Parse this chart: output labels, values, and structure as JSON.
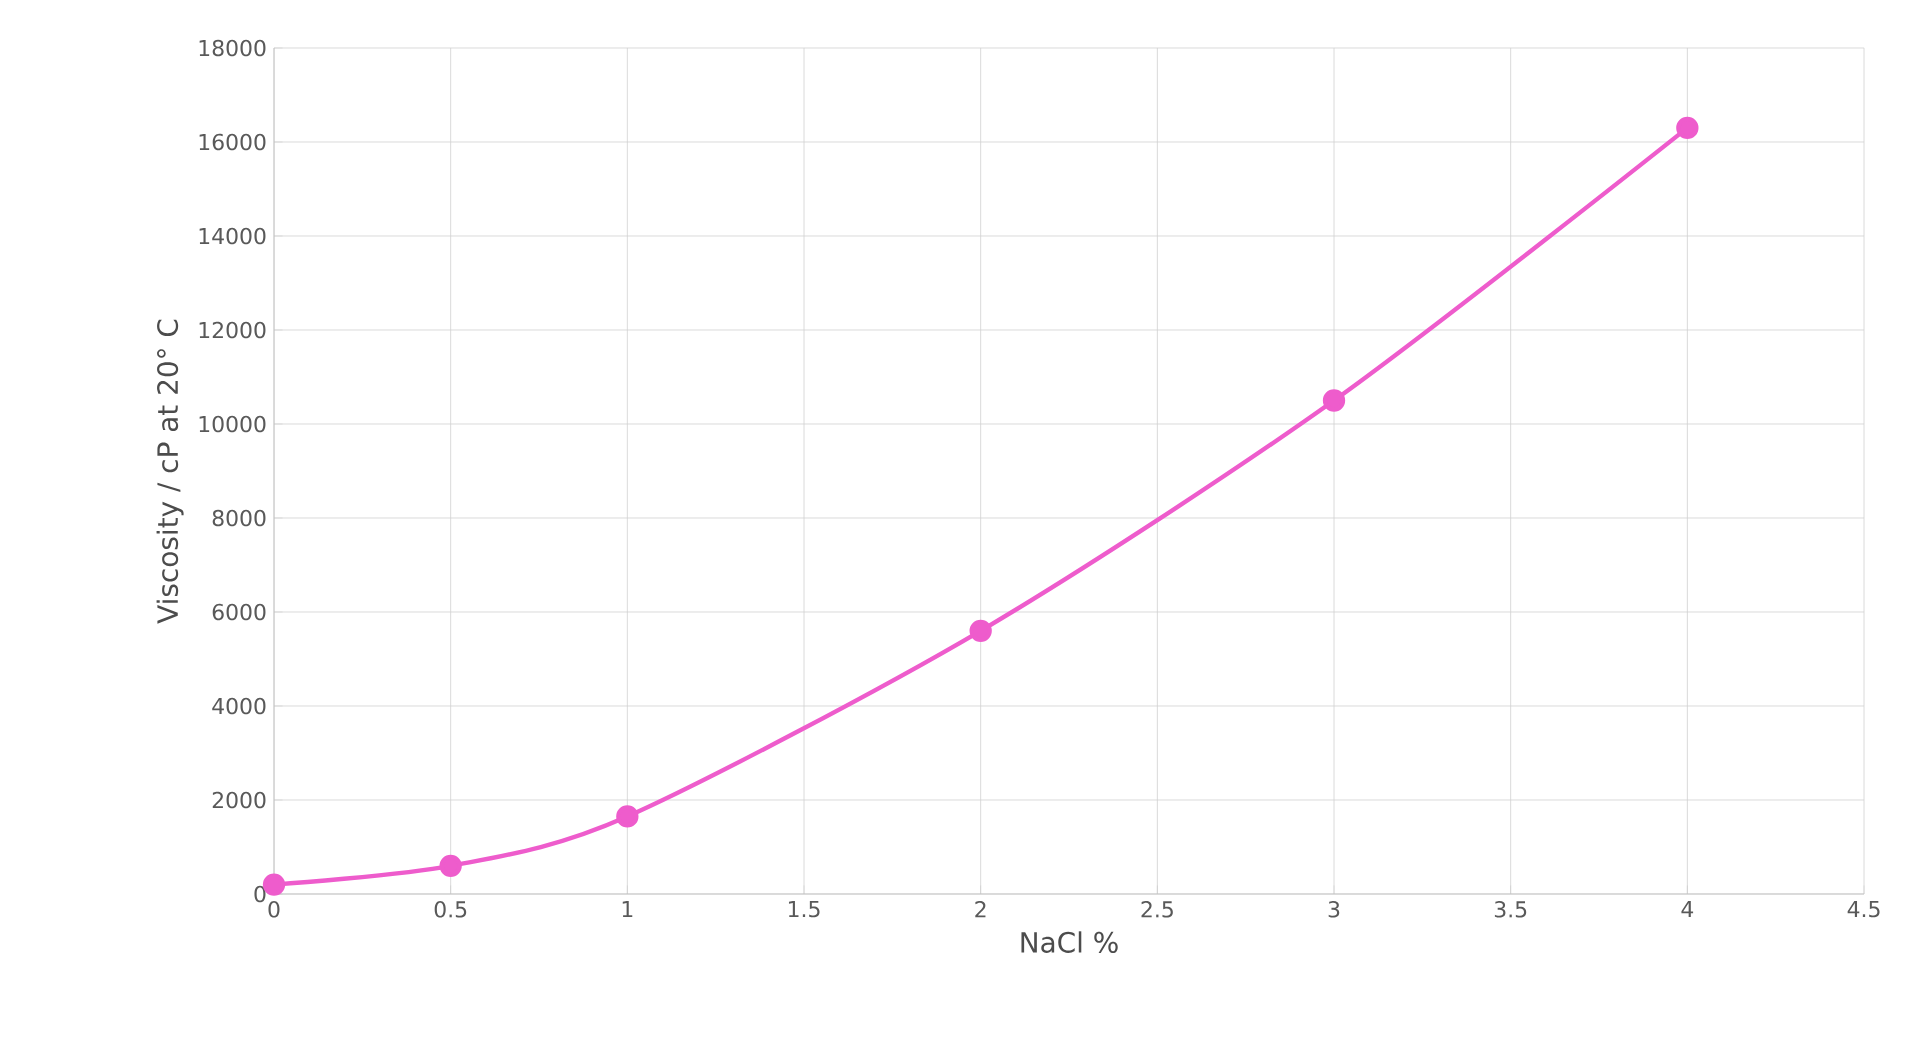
{
  "chart_data": {
    "type": "line",
    "xlabel": "NaCl %",
    "ylabel": "Viscosity / cP at 20° C",
    "x": [
      0,
      0.5,
      1,
      2,
      3,
      4
    ],
    "series": [
      {
        "color": "#ee5ccc",
        "values": [
          200,
          600,
          1650,
          5600,
          10500,
          16300
        ]
      }
    ],
    "xlim": [
      0,
      4.5
    ],
    "xticks": [
      0,
      0.5,
      1,
      1.5,
      2,
      2.5,
      3,
      3.5,
      4,
      4.5
    ],
    "ylim": [
      0,
      18000
    ],
    "yticks": [
      0,
      2000,
      4000,
      6000,
      8000,
      10000,
      12000,
      14000,
      16000,
      18000
    ],
    "grid": true,
    "marker": "circle",
    "line_style": "solid"
  }
}
